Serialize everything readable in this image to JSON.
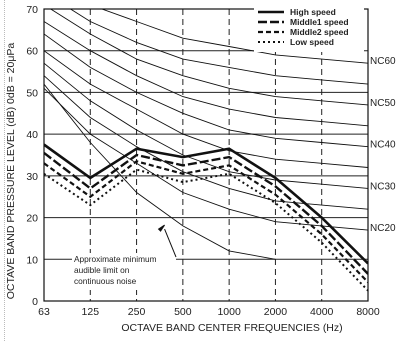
{
  "chart_data": {
    "type": "line",
    "ylabel": "OCTAVE BAND PRESSURE LEVEL (dB) 0dB = 20μPa",
    "xlabel": "OCTAVE BAND CENTER FREQUENCIES (Hz)",
    "categories": [
      "63",
      "125",
      "250",
      "500",
      "1000",
      "2000",
      "4000",
      "8000"
    ],
    "y_ticks": [
      0,
      10,
      20,
      30,
      40,
      50,
      60,
      70
    ],
    "ylim": [
      0,
      70
    ],
    "grid": "horizontal solid lines, vertical dashed lines",
    "legend_position": "top-right",
    "series": [
      {
        "name": "High speed",
        "style": "solid",
        "values": [
          37.5,
          29.5,
          36.5,
          34.5,
          36.5,
          29.5,
          20,
          9
        ]
      },
      {
        "name": "Middle1 speed",
        "style": "long-dash",
        "values": [
          35.5,
          27,
          35,
          32.5,
          34.5,
          27.5,
          18,
          6.5
        ]
      },
      {
        "name": "Middle2 speed",
        "style": "dash",
        "values": [
          33,
          25,
          33.5,
          30.5,
          32.5,
          25.5,
          16,
          4.5
        ]
      },
      {
        "name": "Low speed",
        "style": "dot",
        "values": [
          30.5,
          23,
          31.5,
          28.5,
          30.5,
          23.5,
          14,
          2.5
        ]
      }
    ],
    "nc_curves": [
      {
        "label": "NC60",
        "values": [
          77,
          71,
          67,
          63,
          61,
          59,
          58,
          57
        ]
      },
      {
        "label": "NC50",
        "values": [
          71,
          64,
          58,
          54,
          51,
          49,
          48,
          47
        ]
      },
      {
        "label": "NC40",
        "values": [
          64,
          56,
          50,
          45,
          41,
          39,
          38,
          37
        ]
      },
      {
        "label": "NC30",
        "values": [
          57,
          48,
          41,
          35,
          31,
          29,
          28,
          27
        ]
      },
      {
        "label": "NC20",
        "values": [
          51,
          40,
          33,
          26,
          22,
          19,
          18,
          17
        ]
      },
      {
        "label": "",
        "values": [
          74,
          67,
          62,
          58,
          56,
          54,
          53,
          52
        ]
      },
      {
        "label": "",
        "values": [
          67,
          60,
          54,
          49,
          46,
          44,
          43,
          42
        ]
      },
      {
        "label": "",
        "values": [
          60,
          52,
          46,
          40,
          36,
          34,
          33,
          32
        ]
      },
      {
        "label": "",
        "values": [
          54,
          44,
          37,
          31,
          27,
          24,
          23,
          22
        ]
      }
    ],
    "audible_limit": {
      "values": [
        52,
        38,
        26,
        18,
        12,
        10,
        null,
        null
      ]
    },
    "annotation": {
      "lines": [
        "Approximate minimum",
        "audible limit on",
        "continuous noise"
      ]
    }
  },
  "colors": {
    "lines": "#111111",
    "grid": "#222222",
    "background": "#ffffff"
  }
}
